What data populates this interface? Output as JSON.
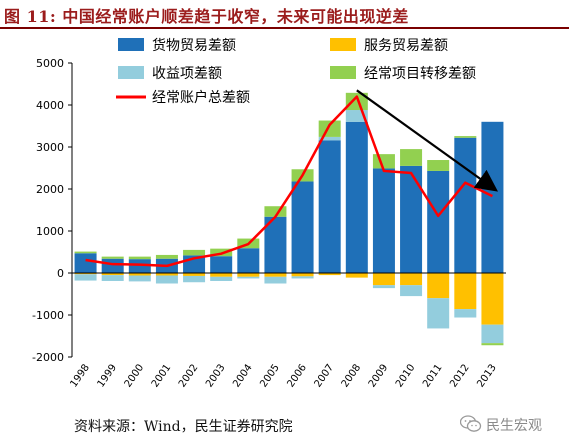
{
  "header": {
    "title": "图 11:  中国经常账户顺差趋于收窄，未来可能出现逆差"
  },
  "footer": {
    "source": "资料来源：Wind，民生证券研究院",
    "brand": "民生宏观",
    "brand_icon": "wechat-icon"
  },
  "colors": {
    "goods": "#1f70b8",
    "services": "#ffc000",
    "income": "#93cddd",
    "transfers": "#92d050",
    "total": "#ff0000",
    "arrow": "#000000",
    "title": "#9b1c1c"
  },
  "chart_data": {
    "type": "bar",
    "stacked": true,
    "categories": [
      "1998",
      "1999",
      "2000",
      "2001",
      "2002",
      "2003",
      "2004",
      "2005",
      "2006",
      "2007",
      "2008",
      "2009",
      "2010",
      "2011",
      "2012",
      "2013"
    ],
    "series": [
      {
        "name": "货物贸易差额",
        "type": "bar",
        "values": [
          470,
          340,
          330,
          340,
          420,
          400,
          590,
          1340,
          2180,
          3160,
          3600,
          2490,
          2550,
          2430,
          3220,
          3600
        ]
      },
      {
        "name": "服务贸易差额",
        "type": "bar",
        "values": [
          -30,
          -50,
          -60,
          -60,
          -70,
          -90,
          -90,
          -90,
          -80,
          -50,
          -110,
          -290,
          -290,
          -600,
          -860,
          -1230
        ]
      },
      {
        "name": "收益项差额",
        "type": "bar",
        "values": [
          -150,
          -140,
          -140,
          -190,
          -150,
          -100,
          -40,
          -160,
          -50,
          80,
          280,
          -70,
          -260,
          -720,
          -200,
          -440
        ]
      },
      {
        "name": "经常项目转移差额",
        "type": "bar",
        "values": [
          40,
          50,
          60,
          90,
          130,
          180,
          230,
          250,
          290,
          390,
          410,
          340,
          400,
          260,
          40,
          -50
        ]
      },
      {
        "name": "经常账户总差额",
        "type": "line",
        "values": [
          310,
          210,
          200,
          170,
          350,
          460,
          690,
          1340,
          2330,
          3530,
          4200,
          2430,
          2380,
          1360,
          2150,
          1830
        ]
      }
    ],
    "title": "",
    "xlabel": "",
    "ylabel": "",
    "ylim": [
      -2000,
      5000
    ],
    "yticks": [
      -2000,
      -1000,
      0,
      1000,
      2000,
      3000,
      4000,
      5000
    ],
    "grid": false,
    "legend": {
      "placement": "top",
      "columns": 2
    },
    "annotations": [
      {
        "type": "arrow",
        "from": "2008",
        "to": "2013",
        "from_value": 4350,
        "to_value": 2000
      }
    ]
  }
}
